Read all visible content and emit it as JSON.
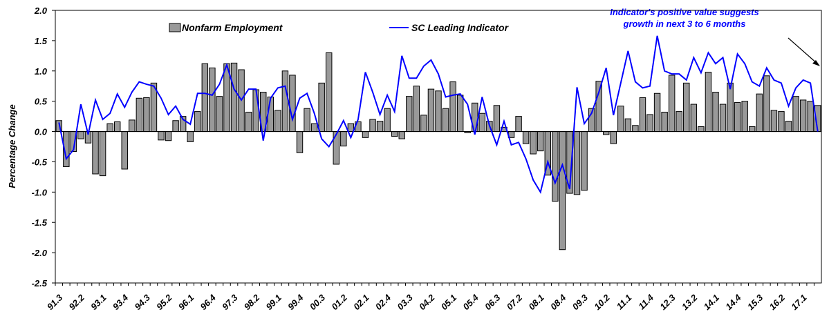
{
  "chart_data": {
    "type": "bar",
    "y_label": "Percentage Change",
    "annotation": [
      "Indicator's positive value suggests",
      "growth in next 3 to 6 months"
    ],
    "legend": "top",
    "categories": [
      "91.3",
      null,
      null,
      "92.2",
      null,
      null,
      "93.1",
      null,
      null,
      "93.4",
      null,
      null,
      "94.3",
      null,
      null,
      "95.2",
      null,
      null,
      "96.1",
      null,
      null,
      "96.4",
      null,
      null,
      "97.3",
      null,
      null,
      "98.2",
      null,
      null,
      "99.1",
      null,
      null,
      "99.4",
      null,
      null,
      "00.3",
      null,
      null,
      "01.2",
      null,
      null,
      "02.1",
      null,
      null,
      "02.4",
      null,
      null,
      "03.3",
      null,
      null,
      "04.2",
      null,
      null,
      "05.1",
      null,
      null,
      "05.4",
      null,
      null,
      "06.3",
      null,
      null,
      "07.2",
      null,
      null,
      "08.1",
      null,
      null,
      "08.4",
      null,
      null,
      "09.3",
      null,
      null,
      "10.2",
      null,
      null,
      "11.1",
      null,
      null,
      "11.4",
      null,
      null,
      "12.3",
      null,
      null,
      "13.2",
      null,
      null,
      "14.1",
      null,
      null,
      "14.4",
      null,
      null,
      "15.3",
      null,
      null,
      "16.2",
      null,
      null,
      "17.1",
      null,
      null
    ],
    "series": [
      {
        "name": "Nonfarm Employment",
        "type": "bar",
        "color": "#999999",
        "values": [
          0.18,
          -0.58,
          -0.33,
          -0.12,
          -0.19,
          -0.7,
          -0.73,
          0.13,
          0.16,
          -0.62,
          0.19,
          0.55,
          0.56,
          0.8,
          -0.14,
          -0.15,
          0.18,
          0.25,
          -0.17,
          0.33,
          1.12,
          1.05,
          0.58,
          1.12,
          1.13,
          1.02,
          0.32,
          0.69,
          0.65,
          0.57,
          0.35,
          1.0,
          0.93,
          -0.35,
          0.38,
          0.13,
          0.8,
          1.3,
          -0.54,
          -0.24,
          0.13,
          0.16,
          -0.1,
          0.2,
          0.17,
          0.38,
          -0.08,
          -0.12,
          0.58,
          0.75,
          0.27,
          0.7,
          0.67,
          0.38,
          0.82,
          0.6,
          -0.02,
          0.47,
          0.3,
          0.17,
          0.43,
          0.07,
          -0.1,
          0.25,
          -0.2,
          -0.37,
          -0.32,
          -0.72,
          -1.15,
          -1.95,
          -1.02,
          -1.04,
          -0.97,
          0.38,
          0.83,
          -0.05,
          -0.2,
          0.42,
          0.21,
          0.1,
          0.56,
          0.28,
          0.63,
          0.32,
          0.93,
          0.33,
          0.8,
          0.45,
          0.08,
          0.98,
          0.65,
          0.45,
          0.8,
          0.48,
          0.5,
          0.08,
          0.62,
          0.92,
          0.35,
          0.33,
          0.17,
          0.58,
          0.52,
          0.5,
          0.43
        ]
      },
      {
        "name": "SC Leading Indicator",
        "type": "line",
        "color": "#0000ff",
        "values": [
          0.15,
          -0.45,
          -0.3,
          0.45,
          -0.05,
          0.52,
          0.2,
          0.3,
          0.62,
          0.4,
          0.65,
          0.82,
          0.78,
          0.75,
          0.55,
          0.28,
          0.42,
          0.2,
          0.12,
          0.63,
          0.63,
          0.6,
          0.78,
          1.1,
          0.7,
          0.52,
          0.7,
          0.7,
          -0.15,
          0.55,
          0.72,
          0.75,
          0.2,
          0.55,
          0.63,
          0.3,
          -0.12,
          -0.25,
          -0.05,
          0.18,
          -0.1,
          0.2,
          0.98,
          0.65,
          0.28,
          0.6,
          0.33,
          1.25,
          0.88,
          0.88,
          1.08,
          1.18,
          0.95,
          0.57,
          0.6,
          0.62,
          0.45,
          -0.05,
          0.57,
          0.1,
          -0.22,
          0.17,
          -0.22,
          -0.18,
          -0.45,
          -0.8,
          -1.0,
          -0.5,
          -0.85,
          -0.55,
          -0.95,
          0.73,
          0.13,
          0.3,
          0.65,
          1.05,
          0.27,
          0.8,
          1.33,
          0.82,
          0.72,
          0.75,
          1.58,
          1.0,
          0.95,
          0.95,
          0.85,
          1.22,
          0.97,
          1.3,
          1.12,
          1.22,
          0.7,
          1.28,
          1.12,
          0.82,
          0.75,
          1.05,
          0.85,
          0.8,
          0.42,
          0.72,
          0.85,
          0.8,
          0.0
        ]
      }
    ],
    "ylim": [
      -2.5,
      2.0
    ],
    "yticks": [
      {
        "value": 2.0,
        "label": "2.0"
      },
      1.5,
      {
        "value": 1.0,
        "label": "1.0"
      },
      0.5,
      {
        "value": 0.0,
        "label": "0.0"
      },
      -0.5,
      {
        "value": -1.0,
        "label": "-1.0"
      },
      -1.5,
      {
        "value": -2.0,
        "label": "-2.0"
      },
      -2.5
    ]
  }
}
